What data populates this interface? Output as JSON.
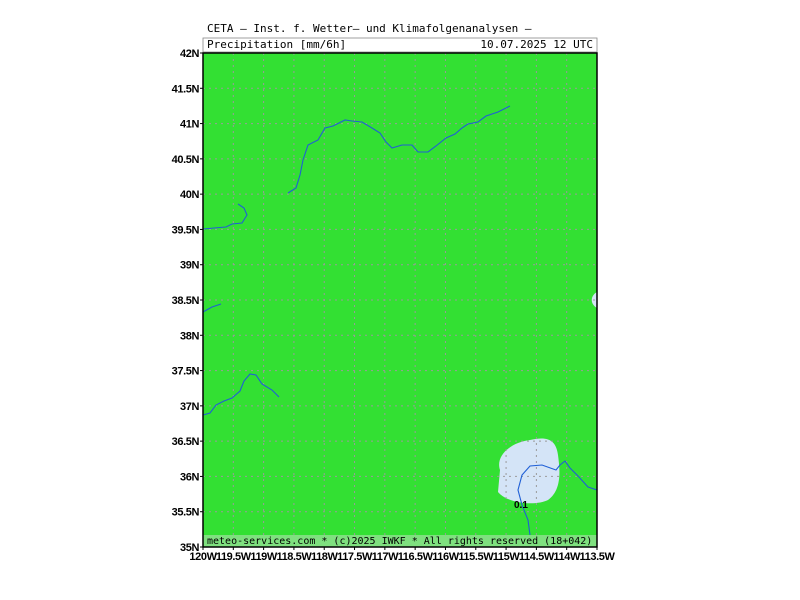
{
  "header": {
    "title": "CETA — Inst. f. Wetter— und Klimafolgenanalysen —",
    "field": "Precipitation [mm/6h]",
    "date": "10.07.2025 12 UTC"
  },
  "footer": "meteo-services.com * (c)2025 IWKF * All rights reserved (18+042)",
  "contour_label": "0.1",
  "axes": {
    "lat": [
      "42N",
      "41.5N",
      "41N",
      "40.5N",
      "40N",
      "39.5N",
      "39N",
      "38.5N",
      "38N",
      "37.5N",
      "37N",
      "36.5N",
      "36N",
      "35.5N",
      "35N"
    ],
    "lon": [
      "120W",
      "119.5W",
      "119W",
      "118.5W",
      "118W",
      "117.5W",
      "117W",
      "116.5W",
      "116W",
      "115.5W",
      "115W",
      "114.5W",
      "114W",
      "113.5W"
    ]
  }
}
